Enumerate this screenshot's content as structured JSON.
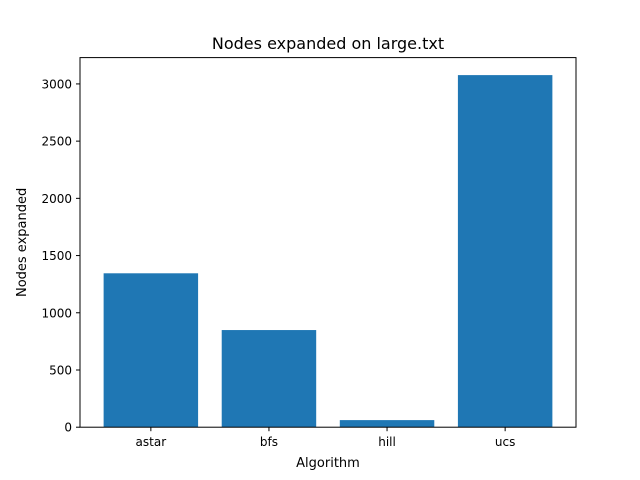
{
  "chart_data": {
    "type": "bar",
    "title": "Nodes expanded on large.txt",
    "xlabel": "Algorithm",
    "ylabel": "Nodes expanded",
    "categories": [
      "astar",
      "bfs",
      "hill",
      "ucs"
    ],
    "values": [
      1345,
      849,
      62,
      3077
    ],
    "ylim": [
      0,
      3230
    ],
    "yticks": [
      0,
      500,
      1000,
      1500,
      2000,
      2500,
      3000
    ],
    "bar_color": "#1f77b4",
    "grid": false,
    "legend": "none"
  }
}
